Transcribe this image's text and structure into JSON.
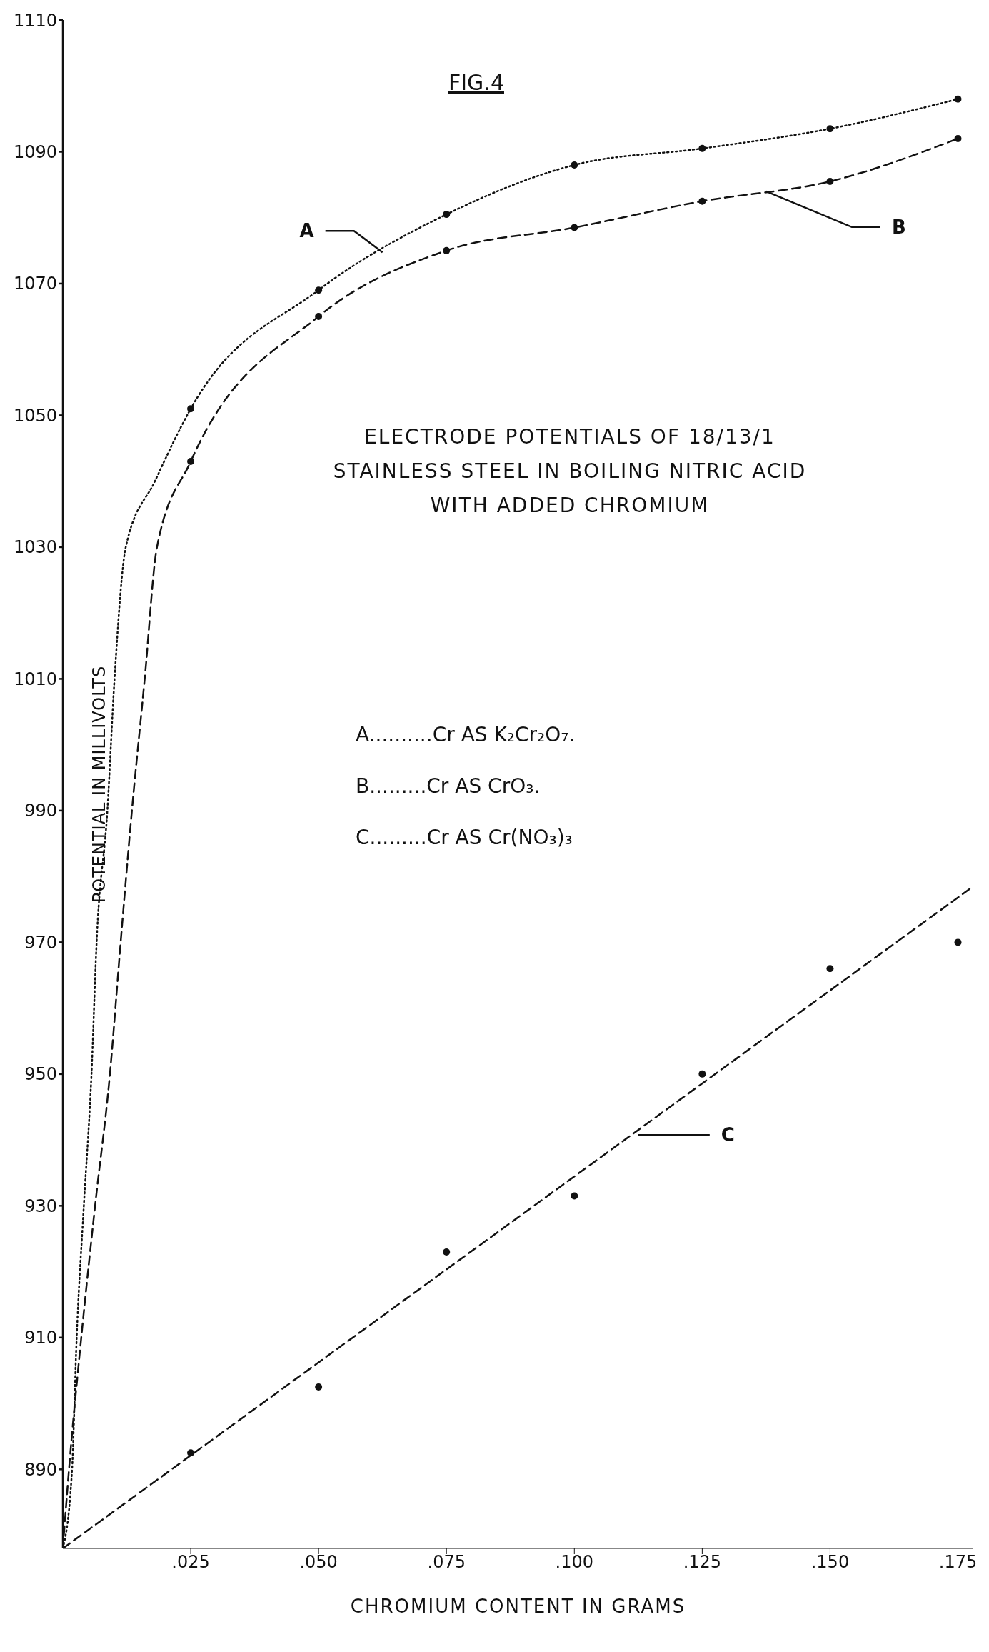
{
  "chart_data": {
    "type": "line",
    "title": "FIG.4",
    "subtitle": "ELECTRODE POTENTIALS OF 18/13/1 STAINLESS STEEL IN BOILING NITRIC ACID WITH ADDED CHROMIUM",
    "xlabel": "CHROMIUM CONTENT IN GRAMS",
    "ylabel": "POTENTIAL IN MILLIVOLTS",
    "xlim": [
      0,
      0.178
    ],
    "ylim": [
      878,
      1110
    ],
    "xticks": [
      {
        "value": 0.025,
        "label": ".025"
      },
      {
        "value": 0.05,
        "label": ".050"
      },
      {
        "value": 0.075,
        "label": ".075"
      },
      {
        "value": 0.1,
        "label": ".100"
      },
      {
        "value": 0.125,
        "label": ".125"
      },
      {
        "value": 0.15,
        "label": ".150"
      },
      {
        "value": 0.175,
        "label": ".175"
      }
    ],
    "yticks": [
      890,
      910,
      930,
      950,
      970,
      990,
      1010,
      1030,
      1050,
      1070,
      1090,
      1110
    ],
    "annotations": [
      "A..........Cr AS K₂Cr₂O₇.",
      "B.........Cr AS CrO₃.",
      "C.........Cr AS Cr(NO₃)₃"
    ],
    "series": [
      {
        "name": "A",
        "color": "#111111",
        "line_style": "dotted",
        "marker": "none",
        "x": [
          0,
          0.0018,
          0.0027,
          0.0041,
          0.0056,
          0.0066,
          0.0087,
          0.0101,
          0.0123,
          0.018,
          0.025,
          0.05,
          0.075,
          0.1,
          0.125,
          0.15,
          0.175
        ],
        "values": [
          878,
          890,
          910,
          930,
          950,
          970,
          990,
          1010,
          1030,
          1040,
          1051,
          1069,
          1080.5,
          1088,
          1090.5,
          1093.5,
          1098
        ]
      },
      {
        "type": "scatter",
        "color": "#111111",
        "marker": "circle",
        "x": [
          0.025,
          0.05,
          0.075,
          0.1,
          0.125,
          0.15,
          0.175
        ],
        "values": [
          1051,
          1069,
          1080.5,
          1088,
          1090.5,
          1093.5,
          1098
        ]
      },
      {
        "name": "B",
        "color": "#111111",
        "line_style": "dashed",
        "marker": "none",
        "x": [
          0,
          0.0012,
          0.0036,
          0.0063,
          0.0092,
          0.0113,
          0.0135,
          0.016,
          0.0184,
          0.025,
          0.05,
          0.075,
          0.1,
          0.125,
          0.15,
          0.175
        ],
        "values": [
          878,
          890,
          910,
          930,
          950,
          970,
          990,
          1010,
          1030,
          1043,
          1065,
          1075,
          1078.5,
          1082.5,
          1085.5,
          1092
        ]
      },
      {
        "type": "scatter",
        "color": "#111111",
        "marker": "circle",
        "x": [
          0.025,
          0.05,
          0.075,
          0.1,
          0.125,
          0.15,
          0.175
        ],
        "values": [
          1043,
          1065,
          1075,
          1078.5,
          1082.5,
          1085.5,
          1092
        ]
      },
      {
        "name": "C",
        "type": "scatter",
        "color": "#111111",
        "marker": "circle",
        "x": [
          0.025,
          0.05,
          0.075,
          0.1,
          0.125,
          0.15,
          0.175
        ],
        "values": [
          892.5,
          902.5,
          923,
          931.5,
          950,
          966,
          970
        ]
      },
      {
        "color": "#111111",
        "line_style": "dashed",
        "marker": "none",
        "x": [
          0,
          0.178
        ],
        "values": [
          878,
          978.5
        ]
      }
    ]
  }
}
